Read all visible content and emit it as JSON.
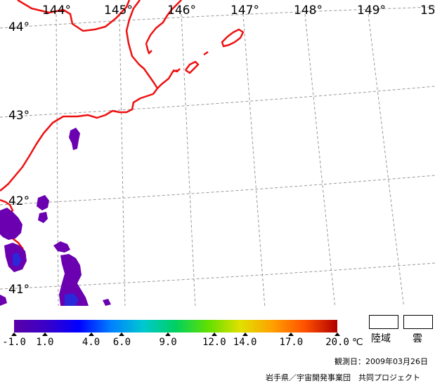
{
  "map": {
    "longitude_labels": [
      "144°",
      "145°",
      "146°",
      "147°",
      "148°",
      "149°",
      "15"
    ],
    "latitude_labels": [
      "44°",
      "43°",
      "42°",
      "41°"
    ],
    "coastline_color": "#ee1111",
    "grid_color": "#999999",
    "sst_cloud_color": "#6a00b0"
  },
  "colorbar": {
    "ticks": [
      "-1.0",
      "1.0",
      "4.0",
      "6.0",
      "9.0",
      "12.0",
      "14.0",
      "17.0",
      "20.0"
    ],
    "tick_values": [
      -1,
      1,
      4,
      6,
      9,
      12,
      14,
      17,
      20
    ],
    "range": [
      -1,
      20
    ],
    "unit": "℃",
    "stops": [
      "#5a00a8",
      "#3a00c8",
      "#0000ff",
      "#0080ff",
      "#00c8d0",
      "#00d060",
      "#60e000",
      "#e0e000",
      "#ffa000",
      "#ff5000",
      "#b00000"
    ]
  },
  "legend": {
    "land_label": "陸域",
    "cloud_label": "雲"
  },
  "footer": {
    "observation_date": "観測日：2009年03月26日",
    "credit": "岩手県／宇宙開発事業団　共同プロジェクト"
  }
}
